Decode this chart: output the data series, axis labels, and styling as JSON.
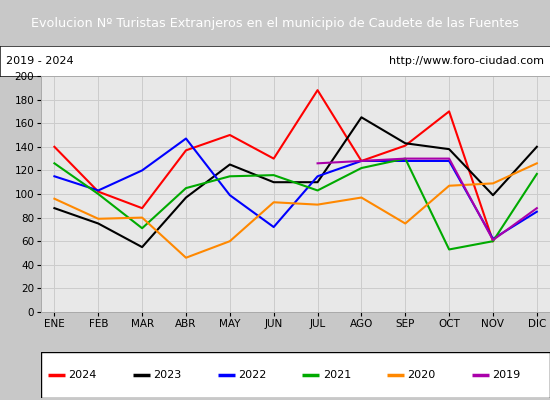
{
  "title": "Evolucion Nº Turistas Extranjeros en el municipio de Caudete de las Fuentes",
  "subtitle_left": "2019 - 2024",
  "subtitle_right": "http://www.foro-ciudad.com",
  "title_bg": "#4472c4",
  "title_color": "white",
  "months": [
    "ENE",
    "FEB",
    "MAR",
    "ABR",
    "MAY",
    "JUN",
    "JUL",
    "AGO",
    "SEP",
    "OCT",
    "NOV",
    "DIC"
  ],
  "series": {
    "2024": {
      "color": "#ff0000",
      "values": [
        140,
        102,
        88,
        137,
        150,
        130,
        188,
        128,
        141,
        170,
        60,
        null
      ]
    },
    "2023": {
      "color": "#000000",
      "values": [
        88,
        75,
        55,
        97,
        125,
        110,
        110,
        165,
        143,
        138,
        99,
        140
      ]
    },
    "2022": {
      "color": "#0000ff",
      "values": [
        115,
        103,
        120,
        147,
        99,
        72,
        115,
        128,
        128,
        128,
        62,
        85
      ]
    },
    "2021": {
      "color": "#00aa00",
      "values": [
        126,
        100,
        71,
        105,
        115,
        116,
        103,
        122,
        130,
        53,
        60,
        117
      ]
    },
    "2020": {
      "color": "#ff8800",
      "values": [
        96,
        79,
        80,
        46,
        60,
        93,
        91,
        97,
        75,
        107,
        109,
        126
      ]
    },
    "2019": {
      "color": "#aa00aa",
      "values": [
        null,
        null,
        null,
        null,
        null,
        null,
        126,
        128,
        130,
        130,
        61,
        88
      ]
    }
  },
  "ylim": [
    0,
    200
  ],
  "yticks": [
    0,
    20,
    40,
    60,
    80,
    100,
    120,
    140,
    160,
    180,
    200
  ],
  "legend_order": [
    "2024",
    "2023",
    "2022",
    "2021",
    "2020",
    "2019"
  ],
  "grid_color": "#cccccc",
  "plot_bg": "#e8e8e8",
  "fig_bg": "#c8c8c8",
  "subtitle_bg": "#ffffff",
  "legend_bg": "#ffffff"
}
